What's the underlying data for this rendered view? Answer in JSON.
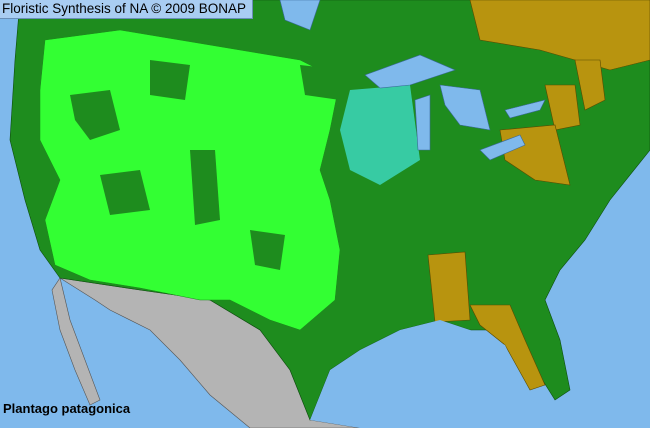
{
  "header": {
    "title": "Floristic Synthesis of NA © 2009 BONAP"
  },
  "map": {
    "species_label": "Plantago patagonica",
    "colors": {
      "ocean": "#7fb9ec",
      "present_native": "#1e8c1e",
      "present_county": "#33ff33",
      "rare_county": "#40e0d0",
      "absent_state": "#b8940f",
      "outside_region": "#b4b4b4",
      "lakes": "#7fb9ec"
    }
  }
}
